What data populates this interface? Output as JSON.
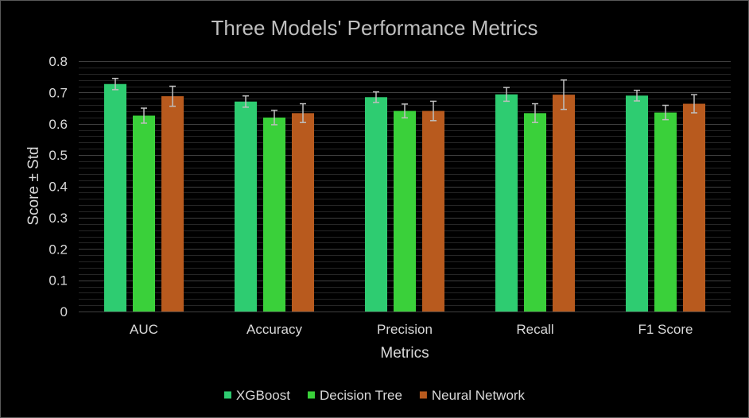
{
  "chart_data": {
    "type": "bar",
    "title": "Three Models' Performance Metrics",
    "xlabel": "Metrics",
    "ylabel": "Score ± Std",
    "categories": [
      "AUC",
      "Accuracy",
      "Precision",
      "Recall",
      "F1 Score"
    ],
    "series": [
      {
        "name": "XGBoost",
        "color": "#2ecc71",
        "values": [
          0.727,
          0.671,
          0.685,
          0.694,
          0.69
        ],
        "errors": [
          0.018,
          0.018,
          0.017,
          0.022,
          0.017
        ]
      },
      {
        "name": "Decision Tree",
        "color": "#3ad03a",
        "values": [
          0.626,
          0.62,
          0.641,
          0.634,
          0.636
        ],
        "errors": [
          0.024,
          0.023,
          0.022,
          0.03,
          0.023
        ]
      },
      {
        "name": "Neural Network",
        "color": "#b85a1e",
        "values": [
          0.688,
          0.634,
          0.641,
          0.693,
          0.664
        ],
        "errors": [
          0.032,
          0.03,
          0.031,
          0.047,
          0.029
        ]
      }
    ],
    "yticks": [
      "0",
      "0.1",
      "0.2",
      "0.3",
      "0.4",
      "0.5",
      "0.6",
      "0.7",
      "0.8"
    ],
    "ylim": [
      0,
      0.8
    ],
    "grid": true,
    "minor_grid": true,
    "legend_position": "bottom",
    "colors": {
      "background": "#000000",
      "text": "#d9d9d9",
      "title": "#bfbfbf",
      "grid": "#404040",
      "error_bar": "#bfbfbf"
    }
  }
}
